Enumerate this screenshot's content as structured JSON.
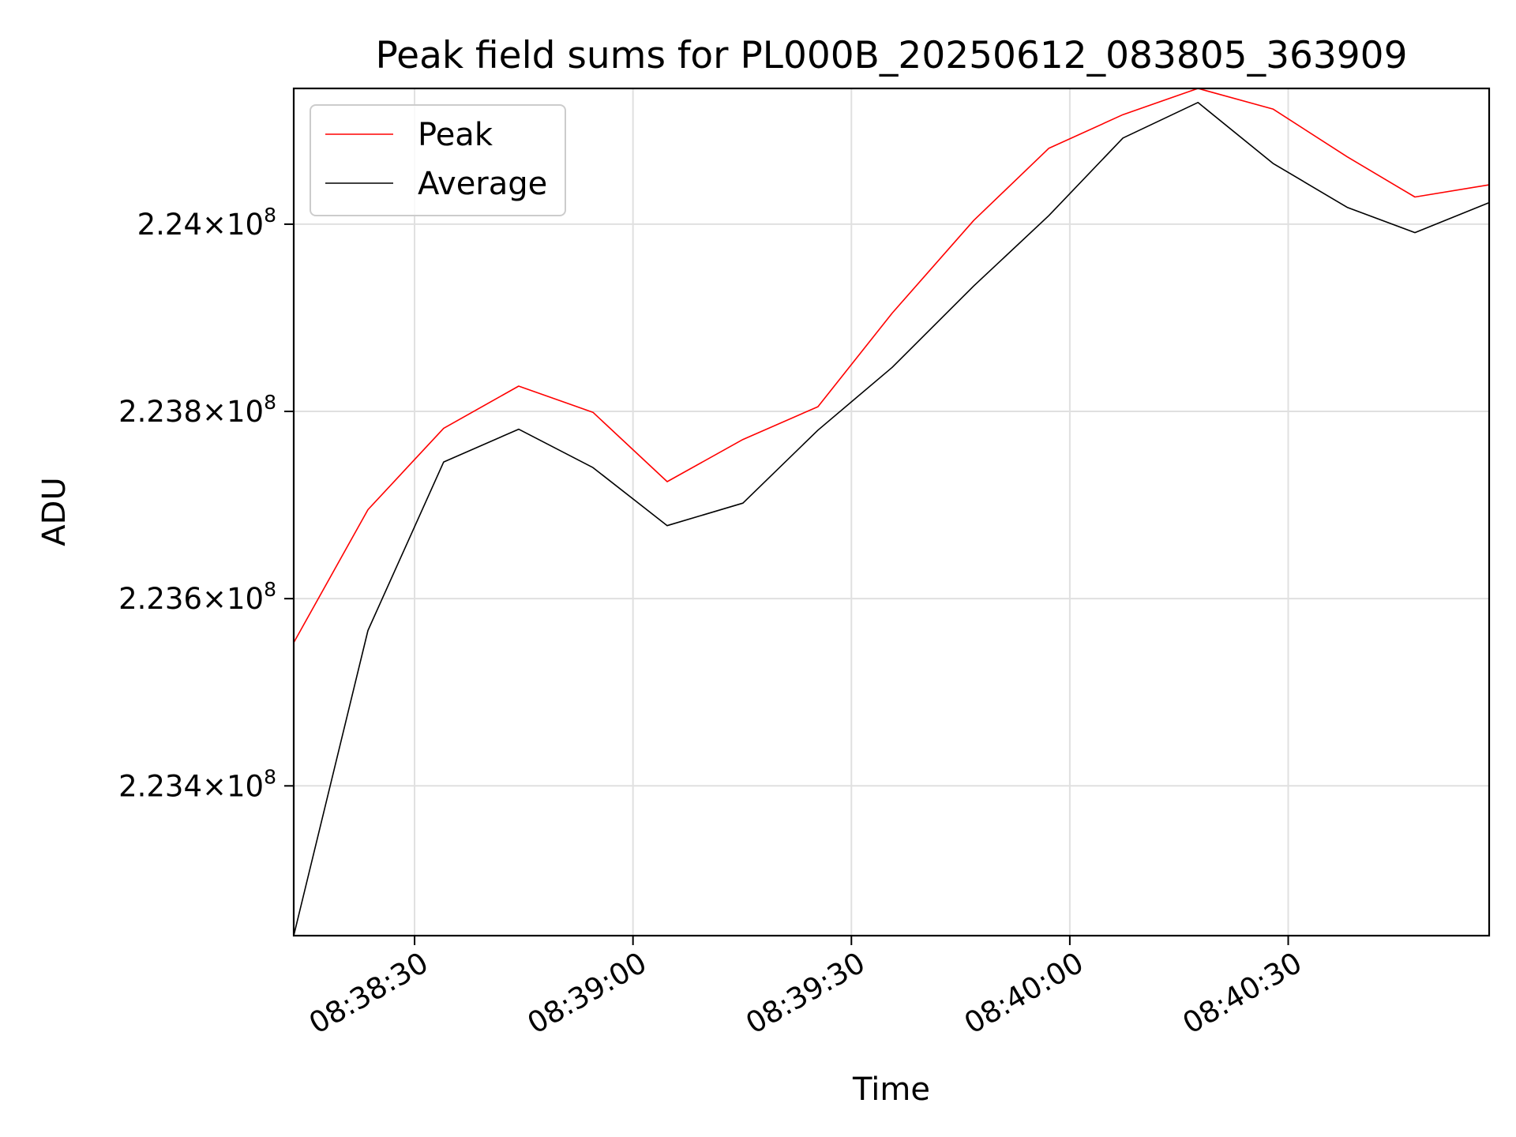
{
  "chart_data": {
    "type": "line",
    "title": "Peak field sums for PL000B_20250612_083805_363909",
    "xlabel": "Time",
    "ylabel": "ADU",
    "x_ticks": [
      "08:38:30",
      "08:39:00",
      "08:39:30",
      "08:40:00",
      "08:40:30"
    ],
    "y_ticks": [
      {
        "mantissa": "2.234",
        "base": "10",
        "exponent": "8",
        "value": 223400000
      },
      {
        "mantissa": "2.236",
        "base": "10",
        "exponent": "8",
        "value": 223600000
      },
      {
        "mantissa": "2.238",
        "base": "10",
        "exponent": "8",
        "value": 223800000
      },
      {
        "mantissa": "2.24",
        "base": "10",
        "exponent": "8",
        "value": 224000000
      }
    ],
    "x_range": [
      "08:38:13.4",
      "08:40:57.6"
    ],
    "y_range": [
      223240000,
      224145000
    ],
    "x": [
      "08:38:13.4",
      "08:38:23.6",
      "08:38:34.0",
      "08:38:44.3",
      "08:38:54.5",
      "08:39:04.7",
      "08:39:15.1",
      "08:39:25.4",
      "08:39:35.6",
      "08:39:46.8",
      "08:39:57.1",
      "08:40:07.3",
      "08:40:17.6",
      "08:40:27.9",
      "08:40:38.1",
      "08:40:47.4",
      "08:40:57.6"
    ],
    "series": [
      {
        "name": "Peak",
        "color": "#ff0000",
        "values": [
          223553000,
          223695000,
          223782000,
          223827000,
          223799000,
          223725000,
          223770000,
          223805000,
          223905000,
          224004000,
          224081000,
          224117000,
          224145000,
          224123000,
          224072000,
          224029000,
          224042000
        ]
      },
      {
        "name": "Average",
        "color": "#000000",
        "values": [
          223240000,
          223566000,
          223746000,
          223781000,
          223740000,
          223678000,
          223702000,
          223780000,
          223847000,
          223934000,
          224009000,
          224092000,
          224130000,
          224065000,
          224018000,
          223991000,
          224023000
        ]
      }
    ],
    "legend_position": "top-left",
    "grid": true
  }
}
